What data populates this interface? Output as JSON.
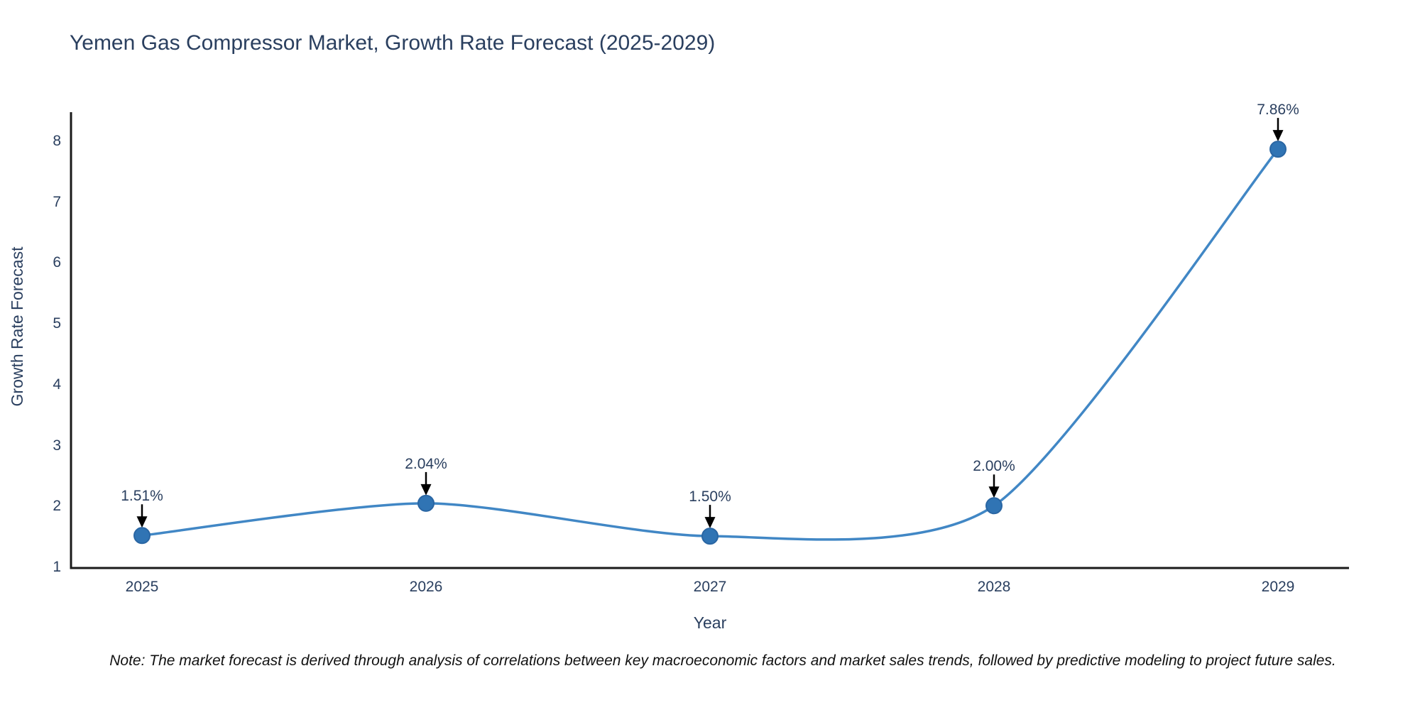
{
  "title": "Yemen Gas Compressor Market, Growth Rate Forecast (2025-2029)",
  "note": "Note: The market forecast is derived through analysis of correlations between key macroeconomic factors and market sales trends, followed by predictive modeling to project future sales.",
  "chart_data": {
    "type": "line",
    "line_shape": "spline",
    "title": "Yemen Gas Compressor Market, Growth Rate Forecast (2025-2029)",
    "xlabel": "Year",
    "ylabel": "Growth Rate Forecast",
    "x": [
      2025,
      2026,
      2027,
      2028,
      2029
    ],
    "series": [
      {
        "name": "Growth Rate Forecast",
        "values": [
          1.51,
          2.04,
          1.5,
          2.0,
          7.86
        ]
      }
    ],
    "point_labels": [
      "1.51%",
      "2.04%",
      "1.50%",
      "2.00%",
      "7.86%"
    ],
    "yticks": [
      1,
      2,
      3,
      4,
      5,
      6,
      7,
      8
    ],
    "ylim": [
      1,
      8.5
    ],
    "xlim": [
      2024.75,
      2029.25
    ],
    "grid": false,
    "legend": "none",
    "colors": {
      "line": "#4187c5",
      "marker_fill": "#3074b4",
      "marker_stroke": "#2a66a3",
      "arrow": "#000000",
      "axis": "#1a1a1a",
      "text": "#2a3f5f",
      "note_text": "#111111",
      "background": "#ffffff"
    }
  }
}
